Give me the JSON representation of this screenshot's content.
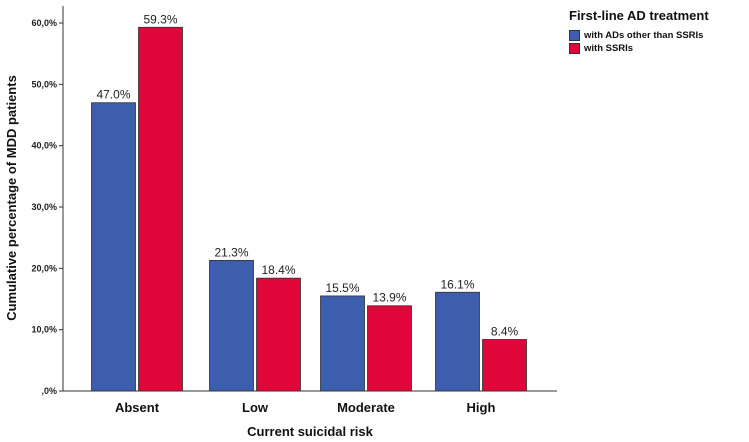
{
  "chart_data": {
    "type": "bar",
    "title": "",
    "xlabel": "Current suicidal risk",
    "ylabel": "Cumulative percentage of MDD patients",
    "categories": [
      "Absent",
      "Low",
      "Moderate",
      "High"
    ],
    "series": [
      {
        "name": "with ADs other than SSRIs",
        "color": "#3d5dad",
        "values": [
          47.0,
          21.3,
          15.5,
          16.1
        ],
        "labels": [
          "47.0%",
          "21.3%",
          "15.5%",
          "16.1%"
        ]
      },
      {
        "name": "with SSRIs",
        "color": "#e0063a",
        "values": [
          59.3,
          18.4,
          13.9,
          8.4
        ],
        "labels": [
          "59.3%",
          "18.4%",
          "13.9%",
          "8.4%"
        ]
      }
    ],
    "ylim": [
      0,
      60
    ],
    "yticks": [
      0,
      10,
      20,
      30,
      40,
      50,
      60
    ],
    "ytick_labels": [
      ",0%",
      "10,0%",
      "20,0%",
      "30,0%",
      "40,0%",
      "50,0%",
      "60,0%"
    ],
    "legend_title": "First-line AD treatment",
    "legend_position": "top-right",
    "grid": false
  }
}
